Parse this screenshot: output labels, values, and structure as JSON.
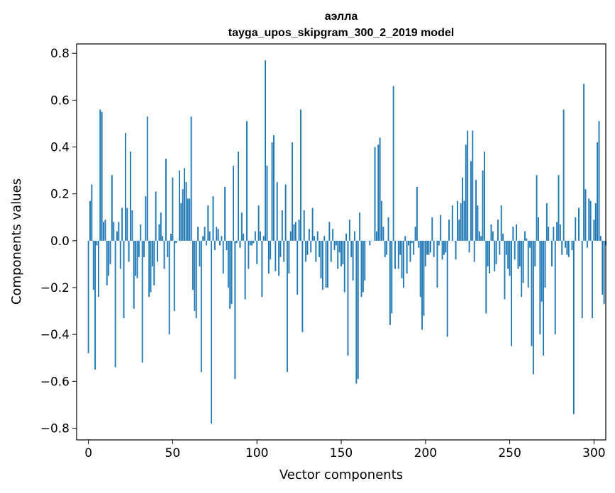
{
  "chart_data": {
    "type": "bar",
    "title": "аэлла",
    "subtitle": "tayga_upos_skipgram_300_2_2019 model",
    "xlabel": "Vector components",
    "ylabel": "Components values",
    "xlim": [
      -7,
      307
    ],
    "ylim": [
      -0.85,
      0.84
    ],
    "x_ticks": [
      0,
      50,
      100,
      150,
      200,
      250,
      300
    ],
    "x_tick_labels": [
      "0",
      "50",
      "100",
      "150",
      "200",
      "250",
      "300"
    ],
    "y_ticks": [
      -0.8,
      -0.6,
      -0.4,
      -0.2,
      0.0,
      0.2,
      0.4,
      0.6,
      0.8
    ],
    "y_tick_labels": [
      "−0.8",
      "−0.6",
      "−0.4",
      "−0.2",
      "0.0",
      "0.2",
      "0.4",
      "0.6",
      "0.8"
    ],
    "bar_color": "#1f77b4",
    "values": [
      -0.48,
      0.17,
      0.24,
      -0.21,
      -0.55,
      -0.02,
      -0.24,
      0.56,
      0.55,
      0.08,
      0.09,
      -0.19,
      -0.15,
      -0.1,
      0.28,
      0.08,
      -0.54,
      0.04,
      0.08,
      -0.12,
      0.14,
      -0.33,
      0.46,
      0.14,
      -0.09,
      0.38,
      0.13,
      -0.29,
      -0.15,
      -0.16,
      -0.07,
      0.07,
      -0.52,
      -0.07,
      0.19,
      0.53,
      -0.24,
      -0.22,
      -0.11,
      -0.19,
      0.21,
      -0.09,
      0.07,
      0.12,
      0.02,
      -0.12,
      0.35,
      -0.07,
      -0.4,
      0.03,
      0.27,
      -0.3,
      -0.01,
      0.0,
      0.3,
      0.16,
      0.22,
      0.31,
      0.25,
      0.18,
      0.18,
      0.53,
      -0.21,
      -0.3,
      -0.33,
      0.06,
      -0.11,
      -0.56,
      0.02,
      0.06,
      -0.02,
      0.15,
      0.04,
      -0.78,
      0.19,
      -0.04,
      0.06,
      0.05,
      -0.02,
      0.02,
      -0.14,
      0.23,
      -0.04,
      -0.2,
      -0.29,
      -0.27,
      0.32,
      -0.59,
      -0.01,
      0.38,
      -0.03,
      0.12,
      0.03,
      -0.25,
      0.51,
      -0.12,
      -0.02,
      -0.02,
      -0.01,
      0.04,
      -0.1,
      0.15,
      0.04,
      -0.24,
      0.02,
      0.77,
      0.32,
      -0.14,
      -0.08,
      0.42,
      0.45,
      -0.13,
      0.25,
      -0.15,
      -0.07,
      0.13,
      -0.09,
      0.24,
      -0.56,
      -0.14,
      0.04,
      0.42,
      0.07,
      0.08,
      -0.23,
      0.09,
      0.56,
      -0.39,
      0.13,
      -0.09,
      -0.06,
      0.05,
      -0.05,
      0.14,
      0.02,
      -0.09,
      0.04,
      -0.07,
      -0.16,
      -0.21,
      0.02,
      -0.2,
      -0.2,
      0.08,
      -0.09,
      0.05,
      -0.04,
      -0.02,
      -0.12,
      -0.05,
      -0.11,
      -0.1,
      -0.22,
      0.03,
      -0.49,
      0.09,
      -0.07,
      -0.17,
      0.04,
      -0.61,
      -0.59,
      0.12,
      -0.24,
      -0.22,
      -0.17,
      0.0,
      0.0,
      -0.02,
      0.0,
      0.0,
      0.4,
      0.04,
      0.41,
      0.44,
      0.17,
      0.06,
      -0.07,
      -0.06,
      0.1,
      -0.36,
      -0.31,
      0.66,
      -0.12,
      0.0,
      -0.12,
      -0.06,
      -0.16,
      -0.2,
      0.02,
      -0.14,
      -0.02,
      -0.09,
      -0.01,
      -0.06,
      0.06,
      0.23,
      -0.03,
      -0.24,
      -0.38,
      -0.32,
      -0.11,
      -0.06,
      -0.06,
      -0.05,
      0.1,
      -0.07,
      0.0,
      -0.2,
      -0.02,
      0.11,
      -0.08,
      -0.06,
      -0.05,
      -0.41,
      0.09,
      0.0,
      0.15,
      0.0,
      -0.08,
      0.17,
      0.09,
      0.16,
      0.27,
      0.17,
      0.41,
      0.47,
      -0.05,
      0.34,
      0.47,
      -0.09,
      0.26,
      0.15,
      0.04,
      0.02,
      0.3,
      0.38,
      -0.31,
      -0.11,
      -0.14,
      0.07,
      0.04,
      -0.13,
      -0.1,
      0.09,
      -0.06,
      0.15,
      0.03,
      -0.25,
      -0.06,
      -0.12,
      -0.15,
      -0.45,
      0.06,
      -0.08,
      0.07,
      -0.12,
      -0.11,
      -0.24,
      -0.18,
      0.04,
      0.01,
      -0.2,
      -0.03,
      -0.45,
      -0.57,
      -0.11,
      0.28,
      0.1,
      -0.4,
      -0.26,
      -0.49,
      -0.2,
      0.16,
      0.06,
      0.0,
      -0.11,
      0.06,
      -0.4,
      0.08,
      0.28,
      0.07,
      -0.06,
      0.56,
      -0.03,
      -0.06,
      -0.07,
      0.0,
      -0.04,
      -0.74,
      0.1,
      0.0,
      0.14,
      0.0,
      -0.33,
      0.67,
      0.22,
      -0.03,
      0.18,
      0.17,
      -0.33,
      0.09,
      0.16,
      0.42,
      0.51,
      0.02,
      -0.23,
      -0.27,
      -0.02
    ]
  }
}
